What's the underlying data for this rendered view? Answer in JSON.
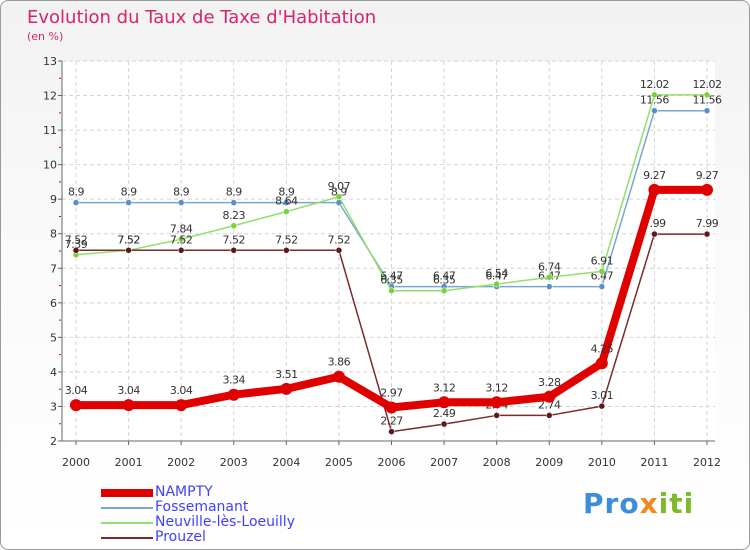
{
  "title": "Evolution du Taux de Taxe d'Habitation",
  "subtitle": "(en %)",
  "logo": {
    "part1": "Pro",
    "part2": "x",
    "part3": "iti"
  },
  "legend": [
    {
      "label": "NAMPTY",
      "color": "#e00000",
      "text_color": "#3f3fff"
    },
    {
      "label": "Fossemanant",
      "color": "#7aa6cf",
      "text_color": "#3f3fff"
    },
    {
      "label": "Neuville-lès-Loeuilly",
      "color": "#92df6f",
      "text_color": "#3f3fff"
    },
    {
      "label": "Prouzel",
      "color": "#7a2b2b",
      "text_color": "#3f3fff"
    }
  ],
  "chart_data": {
    "type": "line",
    "title": "Evolution du Taux de Taxe d'Habitation",
    "ylabel": "(en %)",
    "xlabel": "",
    "x": [
      "2000",
      "2001",
      "2002",
      "2003",
      "2004",
      "2005",
      "2006",
      "2007",
      "2008",
      "2009",
      "2010",
      "2011",
      "2012"
    ],
    "ylim": [
      2,
      13
    ],
    "yticks": [
      "2",
      "3",
      "4",
      "5",
      "6",
      "7",
      "8",
      "9",
      "10",
      "11",
      "12",
      "13"
    ],
    "grid": true,
    "series": [
      {
        "name": "Fossemanant",
        "color": "#5b8fc9",
        "line_color": "#7aa6cf",
        "values": [
          8.9,
          8.9,
          8.9,
          8.9,
          8.9,
          8.9,
          6.47,
          6.47,
          6.47,
          6.47,
          6.47,
          11.56,
          11.56
        ],
        "labels": [
          "8.9",
          "8.9",
          "8.9",
          "8.9",
          "8.9",
          "8.9",
          "6.47",
          "6.47",
          "6.47",
          "6.47",
          "6.47",
          "11.56",
          "11.56"
        ]
      },
      {
        "name": "Neuville-lès-Loeuilly",
        "color": "#78d339",
        "line_color": "#92df6f",
        "values": [
          7.39,
          7.52,
          7.84,
          8.23,
          8.64,
          9.07,
          6.35,
          6.35,
          6.54,
          6.74,
          6.91,
          12.02,
          12.02
        ],
        "labels": [
          "7.39",
          "7.52",
          "7.84",
          "8.23",
          "8.64",
          "9.07",
          "6.35",
          "6.35",
          "6.54",
          "6.74",
          "6.91",
          "12.02",
          "12.02"
        ]
      },
      {
        "name": "Prouzel",
        "color": "#5a1a1a",
        "line_color": "#7a2b2b",
        "values": [
          7.52,
          7.52,
          7.52,
          7.52,
          7.52,
          7.52,
          2.27,
          2.49,
          2.74,
          2.74,
          3.01,
          7.99,
          7.99
        ],
        "labels": [
          "7.52",
          "7.52",
          "7.52",
          "7.52",
          "7.52",
          "7.52",
          "2.27",
          "2.49",
          "2.74",
          "2.74",
          "3.01",
          "7.99",
          "7.99"
        ]
      },
      {
        "name": "NAMPTY",
        "color": "#e00000",
        "line_color": "#e00000",
        "values": [
          3.04,
          3.04,
          3.04,
          3.34,
          3.51,
          3.86,
          2.97,
          3.12,
          3.12,
          3.28,
          4.25,
          9.27,
          9.27
        ],
        "labels": [
          "3.04",
          "3.04",
          "3.04",
          "3.34",
          "3.51",
          "3.86",
          "2.97",
          "3.12",
          "3.12",
          "3.28",
          "4.25",
          "9.27",
          "9.27"
        ]
      }
    ]
  }
}
